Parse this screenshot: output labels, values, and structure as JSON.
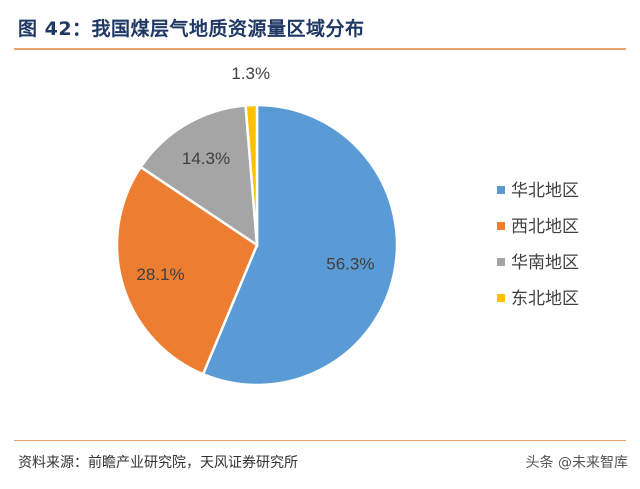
{
  "header": {
    "title": "图 42：我国煤层气地质资源量区域分布"
  },
  "footer": {
    "source": "资料来源：前瞻产业研究院，天风证券研究所",
    "watermark": "头条 @未来智库"
  },
  "chart_data": {
    "type": "pie",
    "title": "",
    "categories": [
      "华北地区",
      "西北地区",
      "华南地区",
      "东北地区"
    ],
    "values": [
      56.3,
      28.1,
      14.3,
      1.3
    ],
    "labels": [
      "56.3%",
      "28.1%",
      "14.3%",
      "1.3%"
    ],
    "colors": [
      "#5b9bd5",
      "#ed7d31",
      "#a5a5a5",
      "#ffc000"
    ],
    "legend": "right",
    "start": "12 o'clock",
    "direction": "clockwise"
  }
}
